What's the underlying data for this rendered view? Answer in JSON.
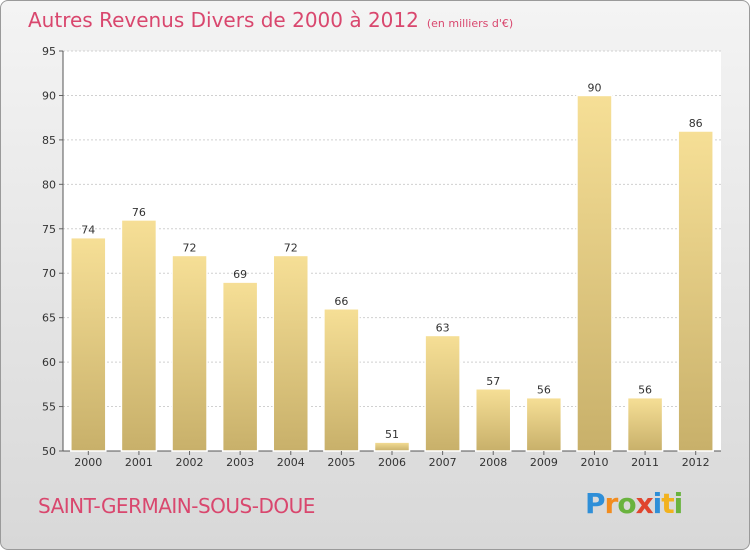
{
  "title": "Autres Revenus Divers de 2000 à 2012",
  "unit": "(en milliers d'€)",
  "commune": "SAINT-GERMAIN-SOUS-DOUE",
  "logo": {
    "letters": [
      "P",
      "r",
      "o",
      "x",
      "i",
      "t",
      "i"
    ],
    "colors": [
      "#2f8fd8",
      "#f28c1e",
      "#6ab33e",
      "#e0452e",
      "#2f8fd8",
      "#f2b21e",
      "#6ab33e"
    ]
  },
  "colors": {
    "bar_light": "#f6df96",
    "bar_dark": "#c8b06a",
    "text": "#d9476e"
  },
  "chart_data": {
    "type": "bar",
    "categories": [
      "2000",
      "2001",
      "2002",
      "2003",
      "2004",
      "2005",
      "2006",
      "2007",
      "2008",
      "2009",
      "2010",
      "2011",
      "2012"
    ],
    "values": [
      74,
      76,
      72,
      69,
      72,
      66,
      51,
      63,
      57,
      56,
      90,
      56,
      86
    ],
    "data_labels": [
      "74",
      "76",
      "72",
      "69",
      "72",
      "66",
      "51",
      "63",
      "57",
      "56",
      "90",
      "56",
      "86"
    ],
    "ylim": [
      50,
      95
    ],
    "yticks": [
      50,
      55,
      60,
      65,
      70,
      75,
      80,
      85,
      90,
      95
    ],
    "grid": true,
    "xlabel": "",
    "ylabel": ""
  }
}
